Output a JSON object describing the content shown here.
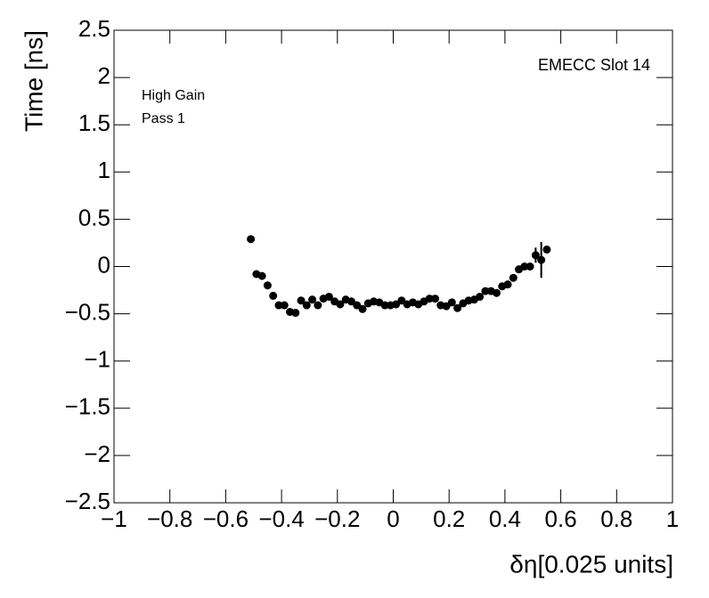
{
  "chart_data": {
    "type": "scatter",
    "x_label": "δη[0.025 units]",
    "y_label": "Time [ns]",
    "annotations": [
      "EMECC Slot 14",
      "High Gain",
      "Pass 1"
    ],
    "xlim": [
      -1,
      1
    ],
    "ylim": [
      -2.5,
      2.5
    ],
    "xticks": [
      {
        "value": -1,
        "label": "−1"
      },
      {
        "value": -0.8,
        "label": "−0.8"
      },
      {
        "value": -0.6,
        "label": "−0.6"
      },
      {
        "value": -0.4,
        "label": "−0.4"
      },
      {
        "value": -0.2,
        "label": "−0.2"
      },
      0,
      0.2,
      0.4,
      0.6,
      0.8,
      1
    ],
    "yticks": [
      {
        "value": -2.5,
        "label": "−2.5"
      },
      {
        "value": -2,
        "label": "−2"
      },
      {
        "value": -1.5,
        "label": "−1.5"
      },
      {
        "value": -1,
        "label": "−1"
      },
      {
        "value": -0.5,
        "label": "−0.5"
      },
      0,
      0.5,
      1,
      1.5,
      2,
      2.5
    ],
    "color": "#000000",
    "x": [
      -0.51,
      -0.49,
      -0.47,
      -0.45,
      -0.43,
      -0.41,
      -0.39,
      -0.37,
      -0.35,
      -0.33,
      -0.31,
      -0.29,
      -0.27,
      -0.25,
      -0.23,
      -0.21,
      -0.19,
      -0.17,
      -0.15,
      -0.13,
      -0.11,
      -0.09,
      -0.07,
      -0.05,
      -0.03,
      -0.01,
      0.01,
      0.03,
      0.05,
      0.07,
      0.09,
      0.11,
      0.13,
      0.15,
      0.17,
      0.19,
      0.21,
      0.23,
      0.25,
      0.27,
      0.29,
      0.31,
      0.33,
      0.35,
      0.37,
      0.39,
      0.41,
      0.43,
      0.45,
      0.47,
      0.49,
      0.51,
      0.53,
      0.55
    ],
    "values": [
      0.29,
      -0.08,
      -0.1,
      -0.2,
      -0.31,
      -0.41,
      -0.41,
      -0.48,
      -0.49,
      -0.36,
      -0.41,
      -0.35,
      -0.41,
      -0.34,
      -0.32,
      -0.37,
      -0.4,
      -0.35,
      -0.37,
      -0.41,
      -0.45,
      -0.39,
      -0.37,
      -0.38,
      -0.41,
      -0.41,
      -0.4,
      -0.36,
      -0.4,
      -0.38,
      -0.4,
      -0.37,
      -0.34,
      -0.34,
      -0.41,
      -0.42,
      -0.38,
      -0.44,
      -0.39,
      -0.36,
      -0.35,
      -0.32,
      -0.26,
      -0.26,
      -0.28,
      -0.21,
      -0.19,
      -0.12,
      -0.03,
      0,
      0,
      0.12,
      0.07,
      0.18
    ],
    "errors": [
      0.03,
      0.02,
      0.02,
      0.02,
      0.02,
      0.02,
      0.02,
      0.02,
      0.02,
      0.02,
      0.02,
      0.02,
      0.02,
      0.02,
      0.02,
      0.02,
      0.02,
      0.02,
      0.02,
      0.02,
      0.02,
      0.02,
      0.02,
      0.02,
      0.02,
      0.02,
      0.02,
      0.02,
      0.02,
      0.02,
      0.02,
      0.02,
      0.02,
      0.02,
      0.02,
      0.02,
      0.02,
      0.02,
      0.02,
      0.02,
      0.02,
      0.02,
      0.02,
      0.02,
      0.02,
      0.02,
      0.02,
      0.02,
      0.03,
      0.03,
      0.03,
      0.08,
      0.19,
      0.03
    ]
  }
}
